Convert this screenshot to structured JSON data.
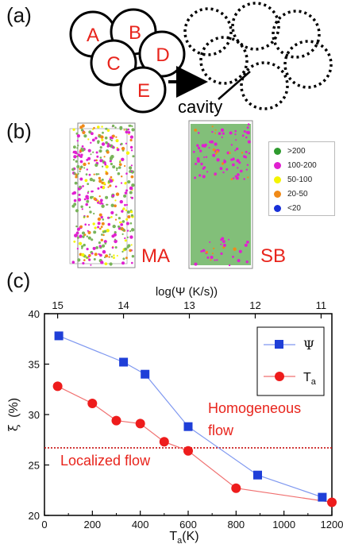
{
  "panel_a": {
    "label": "(a)",
    "particles": [
      "A",
      "B",
      "C",
      "D",
      "E"
    ],
    "cavity_label": "cavity"
  },
  "panel_b": {
    "label": "(b)",
    "left_label": "MA",
    "right_label": "SB",
    "legend": [
      {
        "label": ">200",
        "color": "#2e9a2e"
      },
      {
        "label": "100-200",
        "color": "#e020d0"
      },
      {
        "label": "50-100",
        "color": "#f4f400"
      },
      {
        "label": "20-50",
        "color": "#f08a18"
      },
      {
        "label": "<20",
        "color": "#1830d8"
      }
    ]
  },
  "panel_c": {
    "label": "(c)",
    "annotation_homogeneous_line1": "Homogeneous",
    "annotation_homogeneous_line2": "flow",
    "annotation_localized": "Localized flow",
    "chart_data": {
      "type": "line",
      "xlabel_bottom": "T",
      "xlabel_bottom_sub": "a",
      "xlabel_bottom_unit": "(K)",
      "xlabel_top": "log(Ψ (K/s))",
      "ylabel_sym": "ξ",
      "ylabel_unit": "(%)",
      "xlim": [
        0,
        1200
      ],
      "ylim": [
        20,
        40
      ],
      "x_ticks": [
        "0",
        "200",
        "400",
        "600",
        "800",
        "1000",
        "1200"
      ],
      "y_ticks": [
        "20",
        "25",
        "30",
        "35",
        "40"
      ],
      "top_ticks": [
        {
          "label": "15",
          "x": 55
        },
        {
          "label": "14",
          "x": 330
        },
        {
          "label": "13",
          "x": 605
        },
        {
          "label": "12",
          "x": 880
        },
        {
          "label": "11",
          "x": 1155
        }
      ],
      "threshold_y": 26.7,
      "series": [
        {
          "name": "Ψ",
          "color": "#1f3fd8",
          "line_color": "#7f98f0",
          "marker": "square",
          "x": [
            60,
            330,
            420,
            600,
            890,
            1160
          ],
          "y": [
            37.8,
            35.2,
            34.0,
            28.8,
            24.0,
            21.8
          ]
        },
        {
          "name": "T",
          "name_sub": "a",
          "color": "#ee1c1c",
          "line_color": "#f07070",
          "marker": "circle",
          "x": [
            55,
            200,
            300,
            400,
            500,
            600,
            800,
            1200
          ],
          "y": [
            32.8,
            31.1,
            29.4,
            29.1,
            27.3,
            26.4,
            22.7,
            21.3
          ]
        }
      ]
    }
  }
}
